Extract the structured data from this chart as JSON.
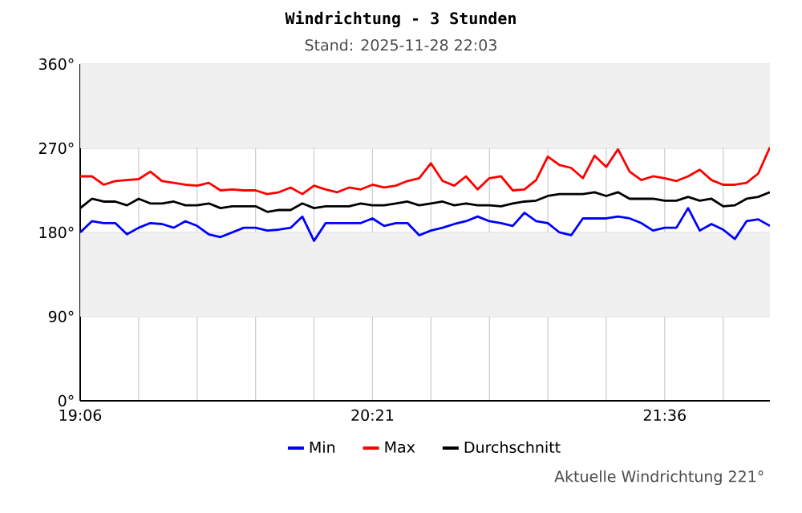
{
  "chart_data": {
    "type": "line",
    "title": "Windrichtung - 3 Stunden",
    "subtitle": "Stand: 2025-11-28 22:03",
    "x": [
      19.1,
      19.15,
      19.2,
      19.25,
      19.3,
      19.35,
      19.4,
      19.45,
      19.5,
      19.55,
      19.6,
      19.65,
      19.7,
      19.75,
      19.8,
      19.85,
      19.9,
      19.95,
      20.0,
      20.05,
      20.1,
      20.15,
      20.2,
      20.25,
      20.3,
      20.35,
      20.4,
      20.45,
      20.5,
      20.55,
      20.6,
      20.65,
      20.7,
      20.75,
      20.8,
      20.85,
      20.9,
      20.95,
      21.0,
      21.05,
      21.1,
      21.15,
      21.2,
      21.25,
      21.3,
      21.35,
      21.4,
      21.45,
      21.5,
      21.55,
      21.6,
      21.65,
      21.7,
      21.75,
      21.8,
      21.85,
      21.9,
      21.95,
      22.0,
      22.05
    ],
    "series": [
      {
        "name": "Min",
        "color": "#0000ff",
        "values": [
          180,
          192,
          190,
          190,
          178,
          185,
          190,
          189,
          185,
          192,
          187,
          178,
          175,
          180,
          185,
          185,
          182,
          183,
          185,
          197,
          171,
          190,
          190,
          190,
          190,
          195,
          187,
          190,
          190,
          177,
          182,
          185,
          189,
          192,
          197,
          192,
          190,
          187,
          201,
          192,
          190,
          180,
          177,
          195,
          195,
          195,
          197,
          195,
          190,
          182,
          185,
          185,
          206,
          182,
          189,
          183,
          173,
          192,
          194,
          187
        ]
      },
      {
        "name": "Max",
        "color": "#ff0000",
        "values": [
          240,
          240,
          231,
          235,
          236,
          237,
          245,
          235,
          233,
          231,
          230,
          233,
          225,
          226,
          225,
          225,
          221,
          223,
          228,
          221,
          230,
          226,
          223,
          228,
          226,
          231,
          228,
          230,
          235,
          238,
          254,
          235,
          230,
          240,
          226,
          238,
          240,
          225,
          226,
          236,
          261,
          252,
          249,
          238,
          262,
          250,
          269,
          245,
          236,
          240,
          238,
          235,
          240,
          247,
          236,
          231,
          231,
          233,
          243,
          271
        ]
      },
      {
        "name": "Durchschnitt",
        "color": "#000000",
        "values": [
          206,
          216,
          213,
          213,
          209,
          216,
          211,
          211,
          213,
          209,
          209,
          211,
          206,
          208,
          208,
          208,
          202,
          204,
          204,
          211,
          206,
          208,
          208,
          208,
          211,
          209,
          209,
          211,
          213,
          209,
          211,
          213,
          209,
          211,
          209,
          209,
          208,
          211,
          213,
          214,
          219,
          221,
          221,
          221,
          223,
          219,
          223,
          216,
          216,
          216,
          214,
          214,
          218,
          214,
          216,
          208,
          209,
          216,
          218,
          223
        ]
      }
    ],
    "xlim": [
      19.1,
      22.05
    ],
    "xticks": [
      {
        "value": 19.1,
        "label": "19:06"
      },
      {
        "value": 19.35,
        "label": null
      },
      {
        "value": 19.6,
        "label": null
      },
      {
        "value": 19.85,
        "label": null
      },
      {
        "value": 20.1,
        "label": null
      },
      {
        "value": 20.35,
        "label": "20:21"
      },
      {
        "value": 20.6,
        "label": null
      },
      {
        "value": 20.85,
        "label": null
      },
      {
        "value": 21.1,
        "label": null
      },
      {
        "value": 21.35,
        "label": null
      },
      {
        "value": 21.6,
        "label": "21:36"
      },
      {
        "value": 21.85,
        "label": null
      }
    ],
    "ylim": [
      0,
      360
    ],
    "yticks": [
      {
        "value": 0,
        "label": "0°"
      },
      {
        "value": 90,
        "label": "90°"
      },
      {
        "value": 180,
        "label": "180°"
      },
      {
        "value": 270,
        "label": "270°"
      },
      {
        "value": 360,
        "label": "360°"
      }
    ],
    "bands": [
      {
        "axis": "y",
        "from": 90,
        "to": 180,
        "color": "#f0f0f0"
      },
      {
        "axis": "y",
        "from": 270,
        "to": 360,
        "color": "#f0f0f0"
      }
    ],
    "grid": true,
    "legend": "bottom",
    "line_style": "solid",
    "marker": "none",
    "annotations": [
      "Aktuelle Windrichtung 221°"
    ]
  }
}
